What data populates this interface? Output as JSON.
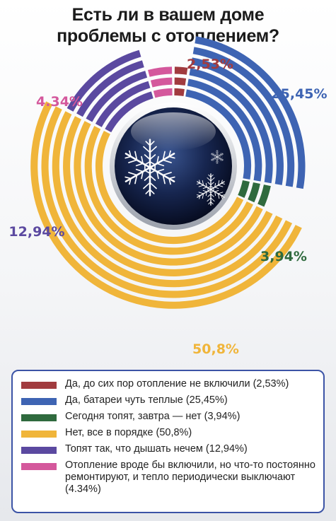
{
  "title_line1": "Есть ли в вашем доме",
  "title_line2": "проблемы с отоплением?",
  "icons": [
    "snowflake-icon",
    "snowflake-icon",
    "snowflake-icon"
  ],
  "chart_data": {
    "type": "pie",
    "title": "Есть ли в вашем доме проблемы с отоплением?",
    "slices": [
      {
        "label": "Да, до сих пор отопление не включили (2,53%)",
        "value": 2.53,
        "display": "2,53%",
        "color": "#a13b3f"
      },
      {
        "label": "Да, батареи чуть теплые (25,45%)",
        "value": 25.45,
        "display": "25,45%",
        "color": "#3e64b3"
      },
      {
        "label": "Сегодня топят, завтра — нет (3,94%)",
        "value": 3.94,
        "display": "3,94%",
        "color": "#2f6a3e"
      },
      {
        "label": "Нет, все в порядке (50,8%)",
        "value": 50.8,
        "display": "50,8%",
        "color": "#f0b53a"
      },
      {
        "label": "Топят так, что дышать нечем (12,94%)",
        "value": 12.94,
        "display": "12,94%",
        "color": "#5b49a0"
      },
      {
        "label": "Отопление вроде бы включили, но что-то постоянно ремонтируют, и тепло периодически выключают (4.34%)",
        "value": 4.34,
        "display": "4.34%",
        "color": "#d4589c"
      }
    ]
  }
}
